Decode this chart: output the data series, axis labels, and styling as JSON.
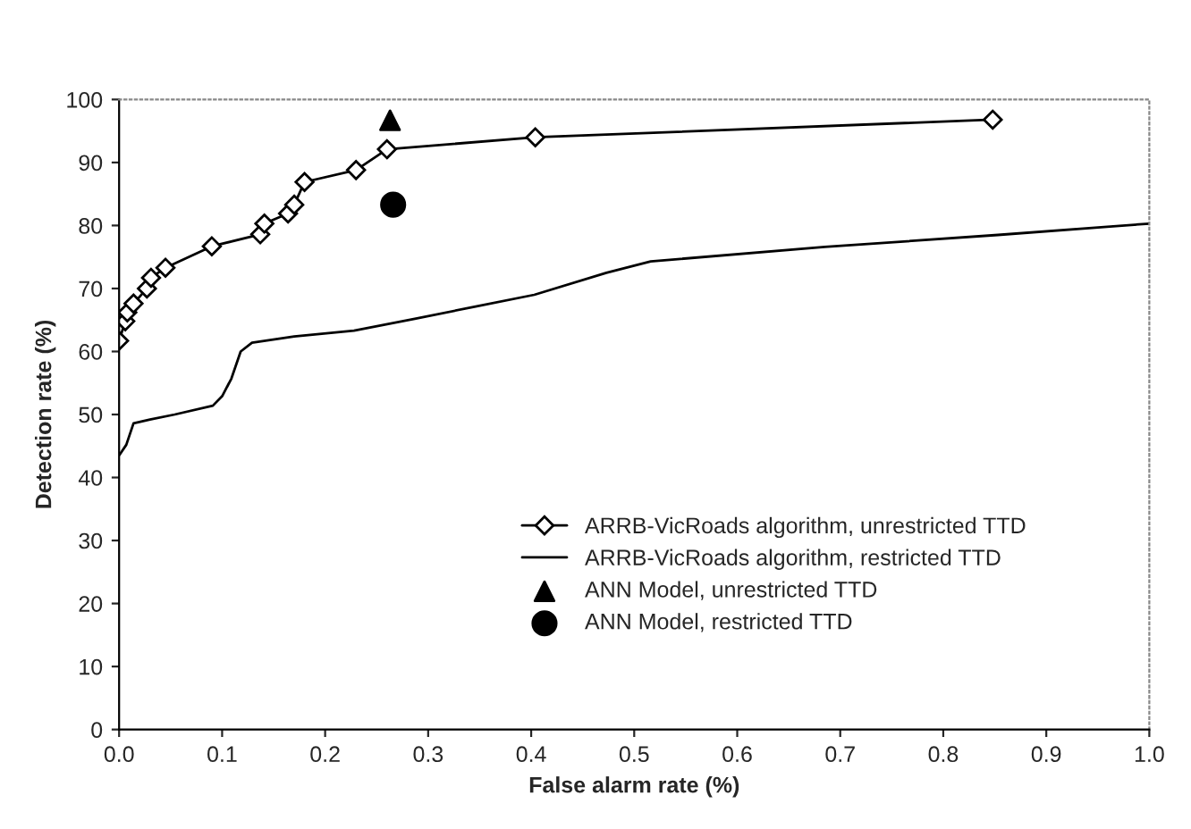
{
  "chart_data": {
    "type": "line",
    "xlabel": "False alarm rate (%)",
    "ylabel": "Detection rate (%)",
    "xlim": [
      0,
      1.0
    ],
    "ylim": [
      0,
      100
    ],
    "xticks": [
      {
        "value": 0,
        "label": "0.0"
      },
      {
        "value": 0.1,
        "label": "0.1"
      },
      {
        "value": 0.2,
        "label": "0.2"
      },
      {
        "value": 0.3,
        "label": "0.3"
      },
      {
        "value": 0.4,
        "label": "0.4"
      },
      {
        "value": 0.5,
        "label": "0.5"
      },
      {
        "value": 0.6,
        "label": "0.6"
      },
      {
        "value": 0.7,
        "label": "0.7"
      },
      {
        "value": 0.8,
        "label": "0.8"
      },
      {
        "value": 0.9,
        "label": "0.9"
      },
      {
        "value": 1.0,
        "label": "1.0"
      }
    ],
    "yticks": [
      0,
      10,
      20,
      30,
      40,
      50,
      60,
      70,
      80,
      90,
      100
    ],
    "grid": false,
    "legend": "lower right",
    "series": [
      {
        "name": "ARRB-VicRoads algorithm, unrestricted TTD",
        "marker": "diamond",
        "line_style": "solid",
        "color": "#000000",
        "x": [
          0,
          0.006,
          0.008,
          0.014,
          0.027,
          0.031,
          0.045,
          0.09,
          0.137,
          0.141,
          0.164,
          0.17,
          0.18,
          0.23,
          0.26,
          0.404,
          0.848
        ],
        "values": [
          61.7,
          64.8,
          66.2,
          67.6,
          70,
          71.7,
          73.3,
          76.7,
          78.6,
          80.3,
          81.9,
          83.3,
          86.9,
          88.8,
          92.1,
          94,
          96.8
        ]
      },
      {
        "name": "ARRB-VicRoads algorithm, restricted TTD",
        "marker": "none",
        "line_style": "solid",
        "color": "#000000",
        "x": [
          0,
          0.007,
          0.014,
          0.03,
          0.054,
          0.091,
          0.1,
          0.109,
          0.118,
          0.129,
          0.17,
          0.228,
          0.287,
          0.345,
          0.403,
          0.473,
          0.516,
          0.685,
          0.853,
          1.0
        ],
        "values": [
          43.5,
          45.2,
          48.6,
          49.2,
          50,
          51.4,
          52.9,
          55.7,
          60,
          61.4,
          62.4,
          63.3,
          65.2,
          67.1,
          69,
          72.5,
          74.3,
          76.6,
          78.5,
          80.3
        ]
      },
      {
        "name": "ANN Model, unrestricted TTD",
        "type": "scatter",
        "marker": "triangle",
        "color": "#000000",
        "x": [
          0.263
        ],
        "values": [
          96.7
        ]
      },
      {
        "name": "ANN Model, restricted TTD",
        "type": "scatter",
        "marker": "circle",
        "color": "#000000",
        "x": [
          0.266
        ],
        "values": [
          83.3
        ]
      }
    ]
  }
}
